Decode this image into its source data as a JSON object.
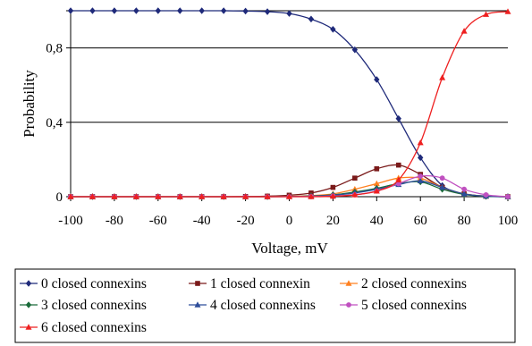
{
  "chart_data": {
    "type": "line",
    "title": "",
    "xlabel": "Voltage, mV",
    "ylabel": "Probability",
    "xlim": [
      -100,
      100
    ],
    "ylim": [
      0,
      1
    ],
    "x_ticks": [
      "-100",
      "-80",
      "-60",
      "-40",
      "-20",
      "0",
      "20",
      "40",
      "60",
      "80",
      "100"
    ],
    "y_ticks": [
      "0",
      "0,4",
      "0,8"
    ],
    "grid": "horizontal",
    "legend_position": "bottom",
    "x": [
      -100,
      -90,
      -80,
      -70,
      -60,
      -50,
      -40,
      -30,
      -20,
      -10,
      0,
      10,
      20,
      30,
      40,
      50,
      60,
      70,
      80,
      90,
      100
    ],
    "series": [
      {
        "name": "0 closed connexins",
        "color": "#1f2a7a",
        "marker": "diamond",
        "values": [
          1.0,
          1.0,
          1.0,
          1.0,
          1.0,
          1.0,
          1.0,
          1.0,
          0.998,
          0.995,
          0.985,
          0.955,
          0.9,
          0.79,
          0.63,
          0.42,
          0.21,
          0.06,
          0.015,
          0.003,
          0.0
        ]
      },
      {
        "name": "1 closed connexin",
        "color": "#7a1a1a",
        "marker": "square",
        "values": [
          0,
          0,
          0,
          0,
          0,
          0,
          0,
          0,
          0.001,
          0.003,
          0.008,
          0.02,
          0.05,
          0.1,
          0.15,
          0.17,
          0.12,
          0.05,
          0.015,
          0.003,
          0.0
        ]
      },
      {
        "name": "2 closed connexins",
        "color": "#ff8020",
        "marker": "triangle",
        "values": [
          0,
          0,
          0,
          0,
          0,
          0,
          0,
          0,
          0,
          0,
          0.002,
          0.006,
          0.015,
          0.04,
          0.07,
          0.1,
          0.1,
          0.05,
          0.015,
          0.003,
          0.0
        ]
      },
      {
        "name": "3 closed connexins",
        "color": "#1a6b3a",
        "marker": "diamond",
        "values": [
          0,
          0,
          0,
          0,
          0,
          0,
          0,
          0,
          0,
          0,
          0.001,
          0.004,
          0.01,
          0.025,
          0.045,
          0.07,
          0.08,
          0.04,
          0.012,
          0.002,
          0.0
        ]
      },
      {
        "name": "4 closed connexins",
        "color": "#2e4d9a",
        "marker": "triangle",
        "values": [
          0,
          0,
          0,
          0,
          0,
          0,
          0,
          0,
          0,
          0,
          0.001,
          0.003,
          0.008,
          0.02,
          0.04,
          0.065,
          0.085,
          0.05,
          0.015,
          0.003,
          0.0
        ]
      },
      {
        "name": "5 closed connexins",
        "color": "#c050c0",
        "marker": "circle",
        "values": [
          0,
          0,
          0,
          0,
          0,
          0,
          0,
          0,
          0,
          0,
          0.0,
          0.001,
          0.004,
          0.01,
          0.03,
          0.07,
          0.11,
          0.1,
          0.04,
          0.01,
          0.0
        ]
      },
      {
        "name": "6 closed connexins",
        "color": "#ee2020",
        "marker": "triangle",
        "values": [
          0,
          0,
          0,
          0,
          0,
          0,
          0,
          0,
          0,
          0,
          0.0,
          0.0,
          0.002,
          0.01,
          0.03,
          0.09,
          0.29,
          0.64,
          0.89,
          0.98,
          0.995
        ]
      }
    ]
  }
}
